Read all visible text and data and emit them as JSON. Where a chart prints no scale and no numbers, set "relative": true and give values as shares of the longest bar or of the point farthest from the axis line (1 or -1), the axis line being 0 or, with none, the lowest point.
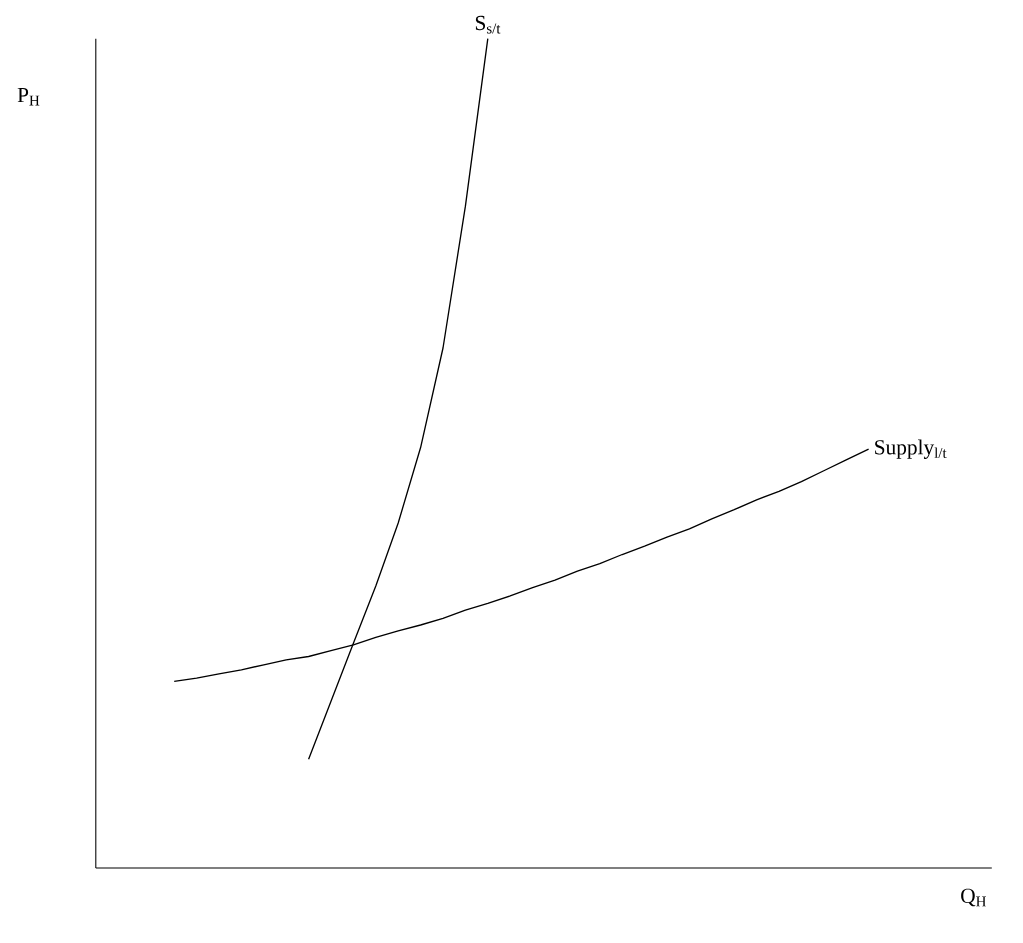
{
  "chart_data": {
    "type": "line",
    "relative": true,
    "xlabel": "Q$_{H}$",
    "ylabel": "P$_{H}$",
    "legend": false,
    "marker": "none",
    "line_style": "solid",
    "categories": [
      null,
      null,
      null,
      null,
      null,
      null,
      null,
      null,
      null,
      null,
      null,
      null,
      null,
      null,
      null,
      null,
      null,
      null,
      null,
      null,
      null,
      null,
      null,
      null,
      null,
      null,
      null,
      null,
      null,
      null,
      null,
      null,
      null,
      null,
      null,
      null,
      null,
      null,
      null,
      null
    ],
    "series": [
      {
        "name": "S$_{s/t}$",
        "color": "#000000",
        "values": [
          null,
          null,
          null,
          null,
          null,
          null,
          null,
          null,
          null,
          0.131,
          0.201,
          0.271,
          0.34,
          0.416,
          0.507,
          0.627,
          0.798,
          1.0,
          null,
          null,
          null,
          null,
          null,
          null,
          null,
          null,
          null,
          null,
          null,
          null,
          null,
          null,
          null,
          null,
          null,
          null,
          null,
          null,
          null,
          null
        ]
      },
      {
        "name": "Supply$_{l/t}$",
        "color": "#000000",
        "values": [
          null,
          null,
          null,
          0.225,
          0.229,
          0.234,
          0.239,
          0.245,
          0.251,
          0.255,
          0.262,
          0.269,
          0.278,
          0.286,
          0.293,
          0.301,
          0.311,
          0.319,
          0.328,
          0.338,
          0.347,
          0.358,
          0.367,
          0.378,
          0.388,
          0.399,
          0.409,
          0.421,
          0.432,
          0.444,
          0.454,
          0.466,
          0.479,
          0.492,
          0.505,
          null,
          null,
          null,
          null,
          null
        ]
      }
    ]
  }
}
